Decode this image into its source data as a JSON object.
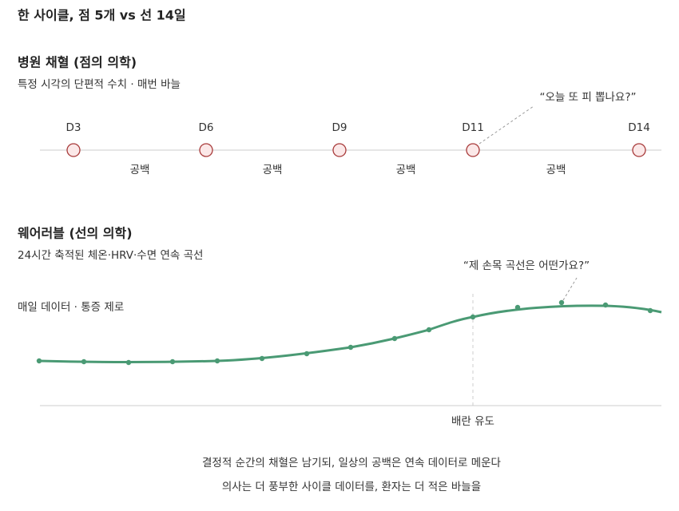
{
  "header": {
    "title": "한 사이클, 점 5개 vs 선 14일"
  },
  "hospital": {
    "title": "병원 채혈 (점의 의학)",
    "subtitle": "특정 시각의 단편적 수치 · 매번 바늘",
    "quote": "“오늘 또 피 뽑나요?”",
    "days": [
      "D3",
      "D6",
      "D9",
      "D11",
      "D14"
    ],
    "gaps": [
      "공백",
      "공백",
      "공백",
      "공백"
    ]
  },
  "wearable": {
    "title": "웨어러블 (선의 의학)",
    "subtitle": "24시간 축적된 체온·HRV·수면 연속 곡선",
    "quote": "“제 손목 곡선은 어떤가요?”",
    "note": "매일 데이터 · 통증 제로",
    "marker": "배란 유도"
  },
  "footer": {
    "lines": [
      "결정적 순간의 채혈은 남기되, 일상의 공백은 연속 데이터로 메운다",
      "의사는 더 풍부한 사이클 데이터를, 환자는 더 적은 바늘을"
    ]
  }
}
